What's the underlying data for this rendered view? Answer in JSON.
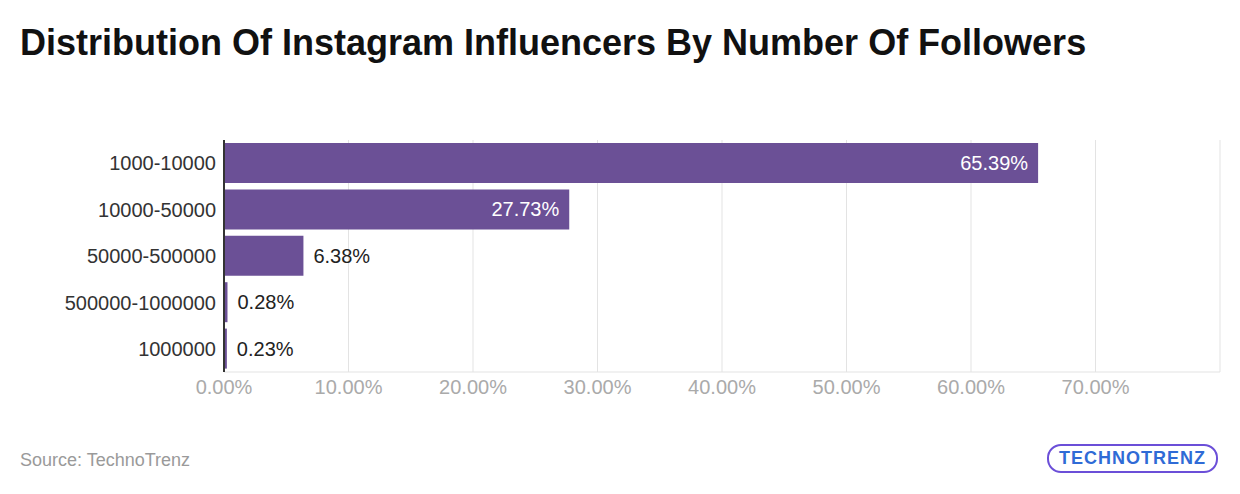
{
  "chart_data": {
    "type": "bar",
    "orientation": "horizontal",
    "title": "Distribution Of Instagram Influencers By Number Of Followers",
    "source": "Source: TechnoTrenz",
    "logo": "TECHNOTRENZ",
    "categories": [
      "1000-10000",
      "10000-50000",
      "50000-500000",
      "500000-1000000",
      "1000000"
    ],
    "values": [
      65.39,
      27.73,
      6.38,
      0.28,
      0.23
    ],
    "value_labels": [
      "65.39%",
      "27.73%",
      "6.38%",
      "0.28%",
      "0.23%"
    ],
    "data_labels": true,
    "color": "#6b5096",
    "xlim": [
      0,
      80
    ],
    "xticks": [
      {
        "value": 0,
        "label": "0.00%"
      },
      {
        "value": 10,
        "label": "10.00%"
      },
      {
        "value": 20,
        "label": "20.00%"
      },
      {
        "value": 30,
        "label": "30.00%"
      },
      {
        "value": 40,
        "label": "40.00%"
      },
      {
        "value": 50,
        "label": "50.00%"
      },
      {
        "value": 60,
        "label": "60.00%"
      },
      {
        "value": 70,
        "label": "70.00%"
      }
    ],
    "grid": true
  }
}
